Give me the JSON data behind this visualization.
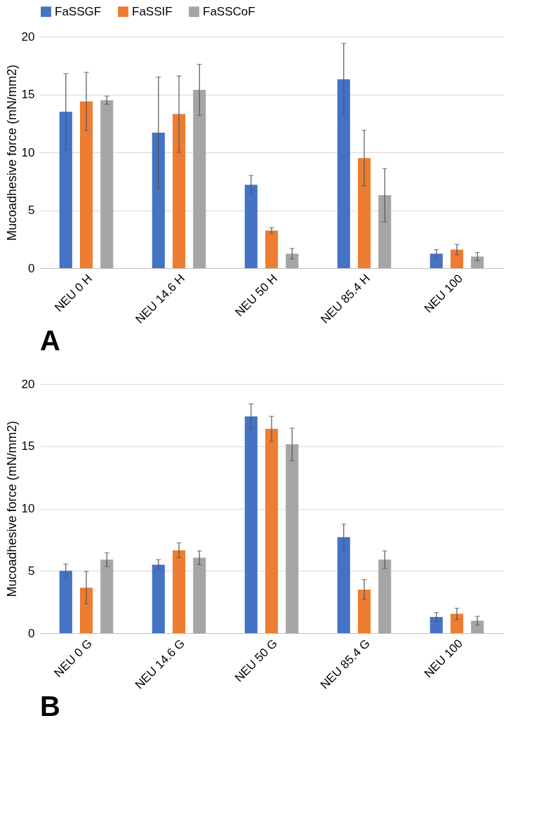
{
  "chart_data": [
    {
      "type": "bar",
      "annotations": [
        "A"
      ],
      "ylabel": "Mucoadhesive force (mN/mm2)",
      "categories": [
        "NEU 0 H",
        "NEU 14.6 H",
        "NEU 50 H",
        "NEU 85.4 H",
        "NEU 100"
      ],
      "ylim": [
        0,
        20
      ],
      "yticks": [
        0,
        5,
        10,
        15,
        20
      ],
      "grid": "y",
      "legend": "top",
      "series": [
        {
          "name": "FaSSGF",
          "color": "#4472c4",
          "values": [
            13.5,
            11.7,
            7.2,
            16.3,
            1.25
          ],
          "errors": [
            3.3,
            4.8,
            0.8,
            3.1,
            0.35
          ]
        },
        {
          "name": "FaSSIF",
          "color": "#ed7d31",
          "values": [
            14.4,
            13.3,
            3.25,
            9.5,
            1.6
          ],
          "errors": [
            2.5,
            3.3,
            0.25,
            2.4,
            0.45
          ]
        },
        {
          "name": "FaSSCoF",
          "color": "#a5a5a5",
          "values": [
            14.5,
            15.4,
            1.25,
            6.3,
            1.0
          ],
          "errors": [
            0.35,
            2.2,
            0.45,
            2.3,
            0.35
          ]
        }
      ]
    },
    {
      "type": "bar",
      "annotations": [
        "B"
      ],
      "ylabel": "Mucoadhesive force (mN/mm2)",
      "categories": [
        "NEU 0 G",
        "NEU 14.6 G",
        "NEU 50 G",
        "NEU 85.4 G",
        "NEU 100"
      ],
      "ylim": [
        0,
        20
      ],
      "yticks": [
        0,
        5,
        10,
        15,
        20
      ],
      "grid": "y",
      "legend": "top",
      "series": [
        {
          "name": "FaSSGF",
          "color": "#4472c4",
          "values": [
            5.0,
            5.5,
            17.4,
            7.7,
            1.3
          ],
          "errors": [
            0.55,
            0.4,
            1.0,
            1.05,
            0.35
          ]
        },
        {
          "name": "FaSSIF",
          "color": "#ed7d31",
          "values": [
            3.65,
            6.65,
            16.4,
            3.5,
            1.55
          ],
          "errors": [
            1.3,
            0.6,
            1.0,
            0.8,
            0.45
          ]
        },
        {
          "name": "FaSSCoF",
          "color": "#a5a5a5",
          "values": [
            5.9,
            6.05,
            15.15,
            5.9,
            1.0
          ],
          "errors": [
            0.55,
            0.55,
            1.3,
            0.7,
            0.35
          ]
        }
      ]
    }
  ]
}
